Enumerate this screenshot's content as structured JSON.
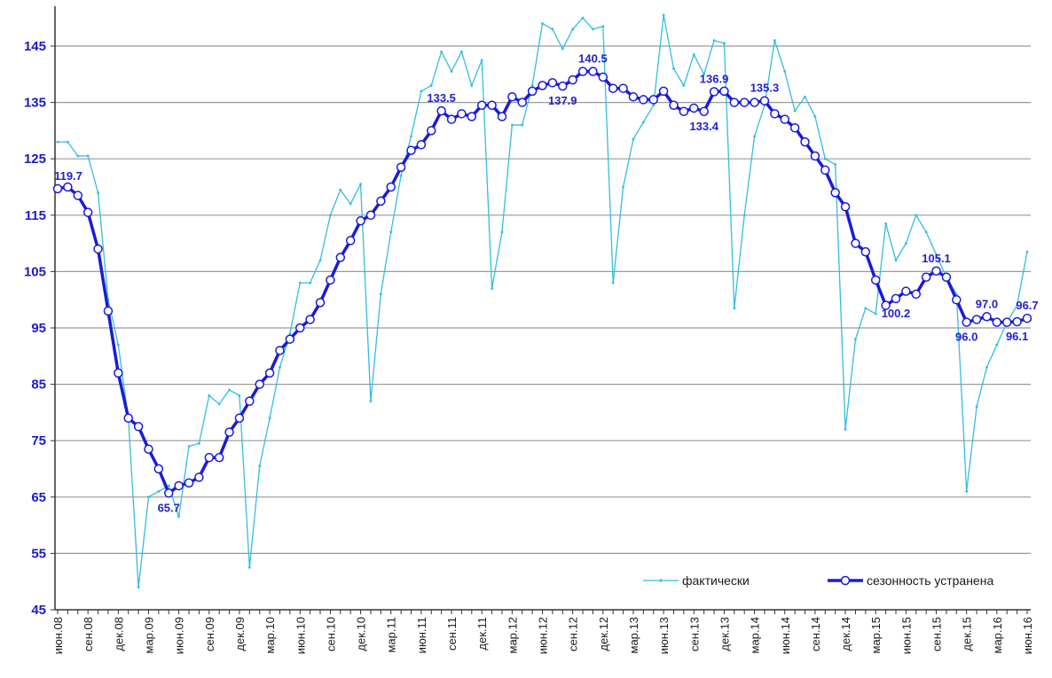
{
  "chart_data": {
    "type": "line",
    "categories": [
      "июн.08",
      null,
      null,
      "сен.08",
      null,
      null,
      "дек.08",
      null,
      null,
      "мар.09",
      null,
      null,
      "июн.09",
      null,
      null,
      "сен.09",
      null,
      null,
      "дек.09",
      null,
      null,
      "мар.10",
      null,
      null,
      "июн.10",
      null,
      null,
      "сен.10",
      null,
      null,
      "дек.10",
      null,
      null,
      "мар.11",
      null,
      null,
      "июн.11",
      null,
      null,
      "сен.11",
      null,
      null,
      "дек.11",
      null,
      null,
      "мар.12",
      null,
      null,
      "июн.12",
      null,
      null,
      "сен.12",
      null,
      null,
      "дек.12",
      null,
      null,
      "мар.13",
      null,
      null,
      "июн.13",
      null,
      null,
      "сен.13",
      null,
      null,
      "дек.13",
      null,
      null,
      "мар.14",
      null,
      null,
      "июн.14",
      null,
      null,
      "сен.14",
      null,
      null,
      "дек.14",
      null,
      null,
      "мар.15",
      null,
      null,
      "июн.15",
      null,
      null,
      "сен.15",
      null,
      null,
      "дек.15",
      null,
      null,
      "мар.16",
      null,
      null,
      "июн.16"
    ],
    "series": [
      {
        "name": "фактически",
        "color": "#33bde0",
        "values": [
          128,
          128,
          125.5,
          125.5,
          119,
          100,
          92,
          79,
          49,
          65,
          66,
          67,
          61.5,
          74,
          74.5,
          83,
          81.5,
          84,
          83,
          52.5,
          70.5,
          79,
          88,
          94,
          103,
          103,
          107,
          115,
          119.5,
          117,
          120.5,
          82,
          101,
          112,
          122,
          129,
          137,
          138,
          144,
          140.5,
          144,
          138,
          142.5,
          102,
          112,
          131,
          131,
          138,
          149,
          148,
          144.5,
          148,
          150,
          148,
          148.5,
          103,
          120,
          128.5,
          131.5,
          134.5,
          150.5,
          141,
          138,
          143.5,
          140,
          146,
          145.5,
          98.5,
          115,
          129,
          134.5,
          146,
          140.5,
          133.5,
          136,
          132.5,
          125,
          124,
          77,
          93,
          98.5,
          97.5,
          113.5,
          107,
          110,
          115,
          112,
          108,
          104,
          101,
          66,
          81,
          88,
          92,
          96,
          99,
          108.5
        ]
      },
      {
        "name": "сезонность устранена",
        "color": "#1a1adb",
        "values": [
          119.7,
          120,
          118.5,
          115.5,
          109,
          98,
          87,
          79,
          77.5,
          73.5,
          70,
          65.7,
          67,
          67.5,
          68.5,
          72,
          72,
          76.5,
          79,
          82,
          85,
          87,
          91,
          93,
          95,
          96.5,
          99.5,
          103.5,
          107.5,
          110.5,
          114,
          115,
          117.5,
          120,
          123.5,
          126.5,
          127.5,
          130,
          133.5,
          132,
          133,
          132.5,
          134.5,
          134.5,
          132.5,
          136,
          135,
          137,
          138,
          138.5,
          137.9,
          139,
          140.5,
          140.5,
          139.5,
          137.5,
          137.5,
          136,
          135.5,
          135.5,
          137,
          134.5,
          133.4,
          134,
          133.4,
          136.9,
          137,
          135,
          135,
          135,
          135.3,
          133,
          132,
          130.5,
          128,
          125.5,
          123,
          119,
          116.5,
          110,
          108.5,
          103.5,
          99,
          100.2,
          101.5,
          101,
          104,
          105.1,
          104,
          100,
          96.0,
          96.5,
          97.0,
          96,
          96,
          96.1,
          96.7
        ],
        "value_labels": [
          "119.7",
          null,
          null,
          null,
          null,
          null,
          null,
          null,
          null,
          null,
          null,
          "65.7",
          null,
          null,
          null,
          null,
          null,
          null,
          null,
          null,
          null,
          null,
          null,
          null,
          null,
          null,
          null,
          null,
          null,
          null,
          null,
          null,
          null,
          null,
          null,
          null,
          null,
          null,
          "133.5",
          null,
          null,
          null,
          null,
          null,
          null,
          null,
          null,
          null,
          null,
          null,
          "137.9",
          null,
          null,
          "140.5",
          null,
          null,
          null,
          null,
          null,
          null,
          null,
          null,
          null,
          null,
          "133.4",
          "136.9",
          null,
          null,
          null,
          null,
          "135.3",
          null,
          null,
          null,
          null,
          null,
          null,
          null,
          null,
          null,
          null,
          null,
          null,
          "100.2",
          null,
          null,
          null,
          "105.1",
          null,
          null,
          "96.0",
          null,
          "97.0",
          null,
          null,
          "96.1",
          "96.7"
        ]
      }
    ],
    "ylim": [
      45,
      150.5
    ],
    "yticks": [
      45,
      55,
      65,
      75,
      85,
      95,
      105,
      115,
      125,
      135,
      145
    ],
    "grid": true,
    "legend": "lower right"
  }
}
